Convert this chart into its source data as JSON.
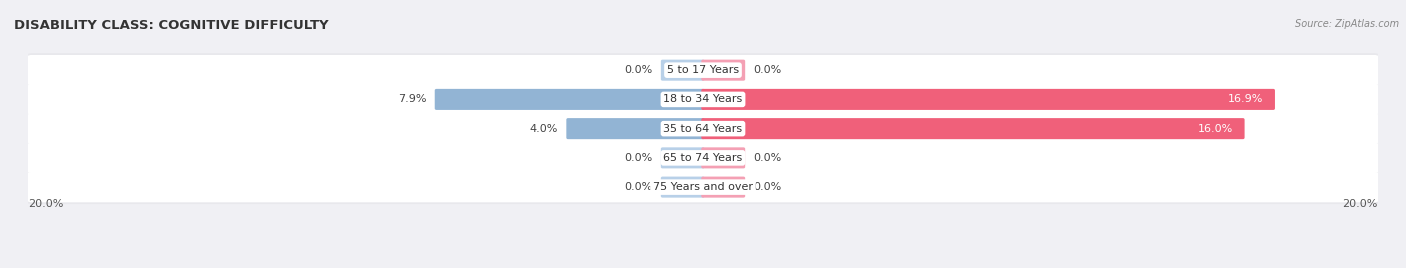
{
  "title": "DISABILITY CLASS: COGNITIVE DIFFICULTY",
  "source": "Source: ZipAtlas.com",
  "categories": [
    "5 to 17 Years",
    "18 to 34 Years",
    "35 to 64 Years",
    "65 to 74 Years",
    "75 Years and over"
  ],
  "male_values": [
    0.0,
    7.9,
    4.0,
    0.0,
    0.0
  ],
  "female_values": [
    0.0,
    16.9,
    16.0,
    0.0,
    0.0
  ],
  "max_val": 20.0,
  "male_color": "#92b4d4",
  "female_color": "#f0607a",
  "male_stub_color": "#b8d0e8",
  "female_stub_color": "#f4a0b4",
  "row_bg_color": "#e8e8ec",
  "row_inner_color": "#f2f2f6",
  "title_fontsize": 9.5,
  "label_fontsize": 8.0,
  "value_fontsize": 8.0,
  "source_fontsize": 7.0,
  "axis_label_bottom_left": "20.0%",
  "axis_label_bottom_right": "20.0%"
}
